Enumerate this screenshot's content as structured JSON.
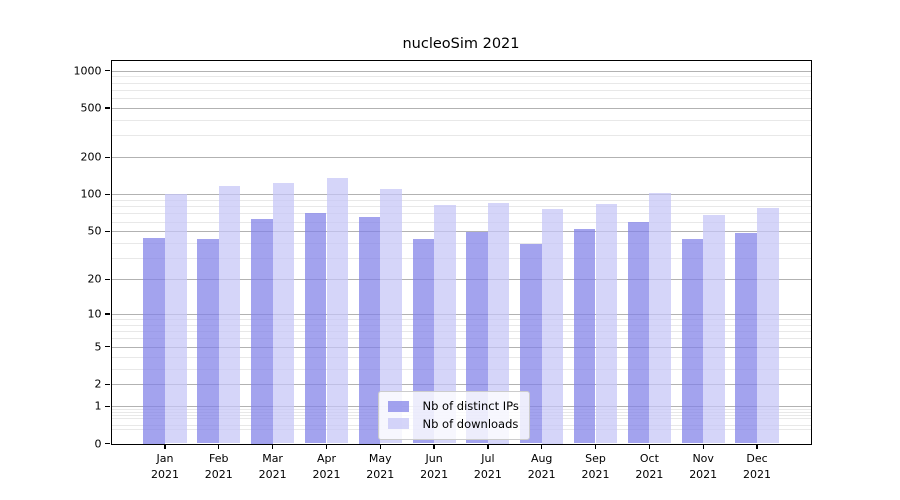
{
  "chart_data": {
    "type": "bar",
    "title": "nucleoSim 2021",
    "categories": [
      "Jan",
      "Feb",
      "Mar",
      "Apr",
      "May",
      "Jun",
      "Jul",
      "Aug",
      "Sep",
      "Oct",
      "Nov",
      "Dec"
    ],
    "year": "2021",
    "series": [
      {
        "name": "Nb of distinct IPs",
        "color": "rgba(127,127,232,0.72)",
        "values": [
          44,
          43,
          63,
          71,
          66,
          43,
          49,
          39,
          52,
          59,
          43,
          48
        ]
      },
      {
        "name": "Nb of downloads",
        "color": "rgba(197,197,246,0.72)",
        "values": [
          101,
          117,
          124,
          136,
          110,
          82,
          85,
          76,
          83,
          103,
          68,
          77
        ]
      },
      {
        "name": "",
        "color": "",
        "values": []
      }
    ],
    "xlabel": "",
    "ylabel": "",
    "y_axis": {
      "scale": "symlog-log1p",
      "ticks": [
        0,
        1,
        2,
        5,
        10,
        20,
        50,
        100,
        200,
        500,
        1000
      ],
      "minor_subs": [
        3,
        4,
        6,
        7,
        8,
        9
      ],
      "ylim": [
        0,
        1200
      ],
      "grid": true
    },
    "legend": {
      "entries": [
        "Nb of distinct IPs",
        "Nb of downloads"
      ],
      "position": "inside lower-center"
    },
    "colors": {
      "major_grid": "#b2b2b2",
      "minor_grid": "#e8e8e8",
      "spine": "#000000",
      "bar_ips_apparent": "#a3a3ee",
      "bar_downloads_apparent": "#d5d5f8"
    }
  }
}
